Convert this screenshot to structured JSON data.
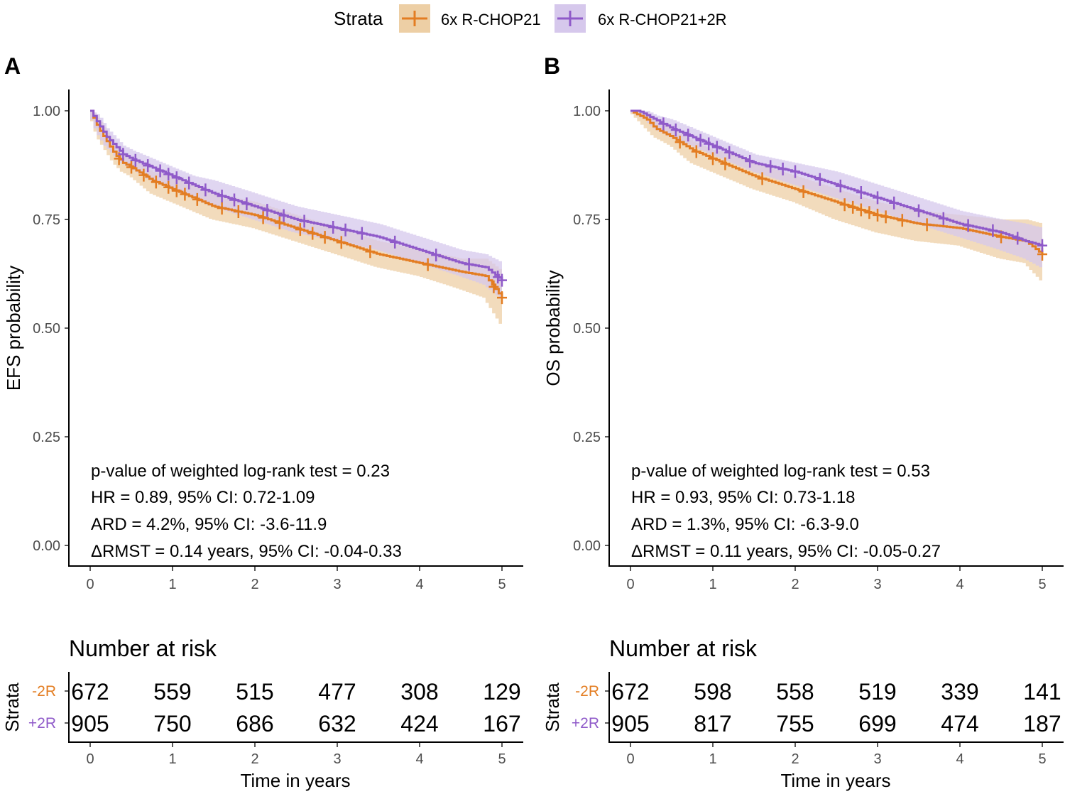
{
  "legend": {
    "title": "Strata",
    "items": [
      {
        "label": "6x R-CHOP21",
        "color": "#E37D22",
        "band": "#EDCFA5"
      },
      {
        "label": "6x R-CHOP21+2R",
        "color": "#8F5AC9",
        "band": "#D6C8EC"
      }
    ]
  },
  "chart_data": [
    {
      "type": "line",
      "panel": "A",
      "title": "",
      "xlabel": "",
      "ylabel": "EFS probability",
      "xlim": [
        0,
        5
      ],
      "ylim": [
        0,
        1
      ],
      "x_ticks": [
        "0",
        "1",
        "2",
        "3",
        "4",
        "5"
      ],
      "y_ticks": [
        "0.00",
        "0.25",
        "0.50",
        "0.75",
        "1.00"
      ],
      "series": [
        {
          "name": "6x R-CHOP21",
          "x": [
            0,
            0.1,
            0.2,
            0.3,
            0.4,
            0.5,
            0.75,
            1,
            1.25,
            1.5,
            2,
            2.5,
            3,
            3.5,
            4,
            4.5,
            4.8,
            5
          ],
          "y": [
            1.0,
            0.96,
            0.93,
            0.9,
            0.88,
            0.87,
            0.84,
            0.82,
            0.8,
            0.78,
            0.76,
            0.73,
            0.7,
            0.67,
            0.65,
            0.63,
            0.62,
            0.57
          ],
          "lower": [
            1.0,
            0.94,
            0.91,
            0.88,
            0.86,
            0.85,
            0.81,
            0.79,
            0.77,
            0.75,
            0.73,
            0.7,
            0.67,
            0.64,
            0.62,
            0.59,
            0.57,
            0.51
          ],
          "upper": [
            1.0,
            0.98,
            0.95,
            0.92,
            0.9,
            0.89,
            0.86,
            0.85,
            0.83,
            0.81,
            0.79,
            0.76,
            0.73,
            0.7,
            0.68,
            0.66,
            0.66,
            0.63
          ],
          "censor_x": [
            0.35,
            0.5,
            0.65,
            0.8,
            0.95,
            1.05,
            1.15,
            1.3,
            1.6,
            1.8,
            2.1,
            2.3,
            2.55,
            2.7,
            2.85,
            3.05,
            3.4,
            4.1,
            4.9,
            5.0
          ]
        },
        {
          "name": "6x R-CHOP21+2R",
          "x": [
            0,
            0.1,
            0.2,
            0.3,
            0.4,
            0.5,
            0.75,
            1,
            1.25,
            1.5,
            2,
            2.5,
            3,
            3.5,
            4,
            4.5,
            4.8,
            5
          ],
          "y": [
            1.0,
            0.97,
            0.94,
            0.92,
            0.9,
            0.89,
            0.87,
            0.85,
            0.83,
            0.81,
            0.78,
            0.75,
            0.73,
            0.71,
            0.68,
            0.65,
            0.64,
            0.61
          ],
          "lower": [
            1.0,
            0.95,
            0.92,
            0.9,
            0.88,
            0.87,
            0.84,
            0.82,
            0.8,
            0.78,
            0.75,
            0.72,
            0.7,
            0.68,
            0.65,
            0.62,
            0.6,
            0.57
          ],
          "upper": [
            1.0,
            0.99,
            0.96,
            0.94,
            0.92,
            0.91,
            0.89,
            0.87,
            0.85,
            0.84,
            0.81,
            0.78,
            0.76,
            0.74,
            0.71,
            0.68,
            0.67,
            0.65
          ],
          "censor_x": [
            0.4,
            0.55,
            0.7,
            0.85,
            0.95,
            1.05,
            1.2,
            1.4,
            1.6,
            1.75,
            1.9,
            2.15,
            2.35,
            2.6,
            2.95,
            3.1,
            3.3,
            3.7,
            4.2,
            4.6,
            4.95,
            5.0
          ]
        }
      ],
      "annotations": [
        "p-value of weighted log-rank test = 0.23",
        "HR = 0.89, 95% CI: 0.72-1.09",
        "ARD = 4.2%, 95% CI: -3.6-11.9",
        "ΔRMST = 0.14 years, 95% CI: -0.04-0.33"
      ],
      "risk_table": {
        "title": "Number at risk",
        "ylabel": "Strata",
        "xlabel": "Time in years",
        "x_ticks": [
          "0",
          "1",
          "2",
          "3",
          "4",
          "5"
        ],
        "rows": [
          {
            "label": "-2R",
            "color": "#E37D22",
            "values": [
              "672",
              "559",
              "515",
              "477",
              "308",
              "129"
            ]
          },
          {
            "label": "+2R",
            "color": "#8F5AC9",
            "values": [
              "905",
              "750",
              "686",
              "632",
              "424",
              "167"
            ]
          }
        ]
      }
    },
    {
      "type": "line",
      "panel": "B",
      "title": "",
      "xlabel": "",
      "ylabel": "OS probability",
      "xlim": [
        0,
        5
      ],
      "ylim": [
        0,
        1
      ],
      "x_ticks": [
        "0",
        "1",
        "2",
        "3",
        "4",
        "5"
      ],
      "y_ticks": [
        "0.00",
        "0.25",
        "0.50",
        "0.75",
        "1.00"
      ],
      "series": [
        {
          "name": "6x R-CHOP21",
          "x": [
            0,
            0.1,
            0.2,
            0.3,
            0.5,
            0.75,
            1,
            1.25,
            1.5,
            2,
            2.5,
            3,
            3.5,
            4,
            4.5,
            4.8,
            5
          ],
          "y": [
            1.0,
            0.99,
            0.98,
            0.96,
            0.94,
            0.91,
            0.89,
            0.87,
            0.85,
            0.82,
            0.79,
            0.76,
            0.74,
            0.73,
            0.71,
            0.7,
            0.67
          ],
          "lower": [
            1.0,
            0.98,
            0.96,
            0.94,
            0.92,
            0.88,
            0.86,
            0.84,
            0.82,
            0.79,
            0.75,
            0.72,
            0.7,
            0.69,
            0.66,
            0.65,
            0.61
          ],
          "upper": [
            1.0,
            1.0,
            0.99,
            0.98,
            0.96,
            0.93,
            0.91,
            0.9,
            0.88,
            0.85,
            0.82,
            0.79,
            0.77,
            0.76,
            0.75,
            0.75,
            0.74
          ],
          "censor_x": [
            0.6,
            0.8,
            1.0,
            1.15,
            1.6,
            2.1,
            2.6,
            2.7,
            2.8,
            2.9,
            3.0,
            3.1,
            3.3,
            3.6,
            4.5,
            5.0
          ]
        },
        {
          "name": "6x R-CHOP21+2R",
          "x": [
            0,
            0.1,
            0.2,
            0.3,
            0.5,
            0.75,
            1,
            1.25,
            1.5,
            2,
            2.5,
            3,
            3.5,
            4,
            4.5,
            4.8,
            5
          ],
          "y": [
            1.0,
            1.0,
            0.99,
            0.98,
            0.96,
            0.94,
            0.92,
            0.9,
            0.88,
            0.86,
            0.83,
            0.8,
            0.77,
            0.74,
            0.72,
            0.7,
            0.69
          ],
          "lower": [
            1.0,
            0.99,
            0.98,
            0.96,
            0.94,
            0.92,
            0.9,
            0.88,
            0.86,
            0.83,
            0.8,
            0.77,
            0.74,
            0.71,
            0.68,
            0.66,
            0.64
          ],
          "upper": [
            1.0,
            1.0,
            1.0,
            0.99,
            0.98,
            0.96,
            0.94,
            0.92,
            0.9,
            0.88,
            0.86,
            0.83,
            0.8,
            0.77,
            0.75,
            0.74,
            0.73
          ],
          "censor_x": [
            0.4,
            0.55,
            0.7,
            0.85,
            0.95,
            1.05,
            1.2,
            1.45,
            1.7,
            1.85,
            2.0,
            2.3,
            2.55,
            2.8,
            3.0,
            3.2,
            3.5,
            3.8,
            4.1,
            4.4,
            4.7,
            5.0
          ]
        }
      ],
      "annotations": [
        "p-value of weighted log-rank test = 0.53",
        "HR = 0.93, 95% CI: 0.73-1.18",
        "ARD = 1.3%, 95% CI: -6.3-9.0",
        "ΔRMST = 0.11 years, 95% CI: -0.05-0.27"
      ],
      "risk_table": {
        "title": "Number at risk",
        "ylabel": "Strata",
        "xlabel": "Time in years",
        "x_ticks": [
          "0",
          "1",
          "2",
          "3",
          "4",
          "5"
        ],
        "rows": [
          {
            "label": "-2R",
            "color": "#E37D22",
            "values": [
              "672",
              "598",
              "558",
              "519",
              "339",
              "141"
            ]
          },
          {
            "label": "+2R",
            "color": "#8F5AC9",
            "values": [
              "905",
              "817",
              "755",
              "699",
              "474",
              "187"
            ]
          }
        ]
      }
    }
  ]
}
